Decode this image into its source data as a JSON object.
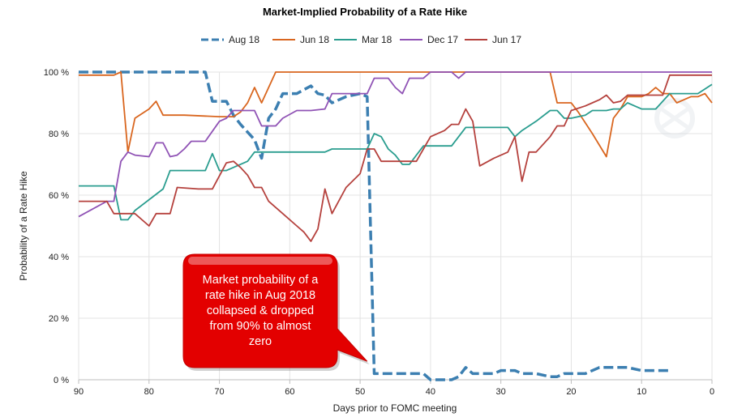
{
  "chart_data": {
    "type": "line",
    "title": "Market-Implied Probability of a Rate Hike",
    "xlabel": "Days prior to FOMC meeting",
    "ylabel": "Probability of a Rate Hike",
    "xlim": [
      90,
      0
    ],
    "ylim": [
      0,
      100
    ],
    "x_ticks": [
      90,
      80,
      70,
      60,
      50,
      40,
      30,
      20,
      10,
      0
    ],
    "y_ticks": [
      0,
      20,
      40,
      60,
      80,
      100
    ],
    "y_tick_suffix": " %",
    "grid": true,
    "legend_position": "top",
    "series": [
      {
        "name": "Aug 18",
        "color": "#3c7fb1",
        "dashed": true,
        "points": [
          [
            90,
            100
          ],
          [
            87,
            100
          ],
          [
            84,
            100
          ],
          [
            80,
            100
          ],
          [
            76,
            100
          ],
          [
            72,
            100
          ],
          [
            71,
            90.5
          ],
          [
            69,
            90.5
          ],
          [
            68,
            86
          ],
          [
            67,
            83
          ],
          [
            65,
            78
          ],
          [
            64,
            72
          ],
          [
            63,
            85
          ],
          [
            62,
            88
          ],
          [
            61,
            93
          ],
          [
            59,
            93
          ],
          [
            57,
            95.5
          ],
          [
            56,
            93
          ],
          [
            55,
            92.5
          ],
          [
            54,
            90
          ],
          [
            52,
            92
          ],
          [
            50,
            93
          ],
          [
            49,
            92
          ],
          [
            48,
            2
          ],
          [
            46,
            2
          ],
          [
            44,
            2
          ],
          [
            42,
            2
          ],
          [
            41,
            2
          ],
          [
            40,
            0
          ],
          [
            37,
            0
          ],
          [
            36,
            1
          ],
          [
            35,
            4
          ],
          [
            34,
            2
          ],
          [
            31,
            2
          ],
          [
            30,
            3
          ],
          [
            28,
            3
          ],
          [
            27,
            2
          ],
          [
            25,
            2
          ],
          [
            23,
            1
          ],
          [
            22,
            1
          ],
          [
            21,
            2
          ],
          [
            19,
            2
          ],
          [
            18,
            2
          ],
          [
            16,
            4
          ],
          [
            14,
            4
          ],
          [
            12,
            4
          ],
          [
            10,
            3
          ],
          [
            8,
            3
          ],
          [
            6,
            3
          ]
        ]
      },
      {
        "name": "Jun 18",
        "color": "#d9661f",
        "dashed": false,
        "points": [
          [
            90,
            99
          ],
          [
            85,
            99
          ],
          [
            84,
            100
          ],
          [
            83,
            74
          ],
          [
            82,
            85
          ],
          [
            80,
            88
          ],
          [
            79,
            90.5
          ],
          [
            78,
            86
          ],
          [
            75,
            86
          ],
          [
            70,
            85.5
          ],
          [
            68,
            85.5
          ],
          [
            67,
            87
          ],
          [
            66,
            90
          ],
          [
            65,
            95
          ],
          [
            64,
            90
          ],
          [
            63,
            95
          ],
          [
            62,
            100
          ],
          [
            60,
            100
          ],
          [
            55,
            100
          ],
          [
            50,
            100
          ],
          [
            45,
            100
          ],
          [
            40,
            100
          ],
          [
            35,
            100
          ],
          [
            30,
            100
          ],
          [
            25,
            100
          ],
          [
            23,
            100
          ],
          [
            22,
            90
          ],
          [
            20,
            90
          ],
          [
            19,
            87
          ],
          [
            17,
            80
          ],
          [
            15,
            72.5
          ],
          [
            14,
            85
          ],
          [
            13,
            88
          ],
          [
            12,
            92
          ],
          [
            11,
            92
          ],
          [
            10,
            92
          ],
          [
            9,
            93
          ],
          [
            8,
            95
          ],
          [
            7,
            93
          ],
          [
            6,
            93
          ],
          [
            5,
            90
          ],
          [
            4,
            91
          ],
          [
            3,
            92
          ],
          [
            2,
            92
          ],
          [
            1,
            93
          ],
          [
            0,
            90
          ]
        ]
      },
      {
        "name": "Mar 18",
        "color": "#2a9d8f",
        "dashed": false,
        "points": [
          [
            90,
            63
          ],
          [
            85,
            63
          ],
          [
            84,
            52
          ],
          [
            83,
            52
          ],
          [
            82,
            55
          ],
          [
            78,
            62
          ],
          [
            77,
            68
          ],
          [
            76,
            68
          ],
          [
            72,
            68
          ],
          [
            71,
            73.5
          ],
          [
            70,
            68
          ],
          [
            69,
            68
          ],
          [
            66,
            71
          ],
          [
            65,
            74
          ],
          [
            60,
            74
          ],
          [
            55,
            74
          ],
          [
            54,
            75
          ],
          [
            49,
            75
          ],
          [
            48,
            80
          ],
          [
            47,
            79
          ],
          [
            46,
            75
          ],
          [
            45,
            73
          ],
          [
            44,
            70
          ],
          [
            43,
            70
          ],
          [
            42,
            73
          ],
          [
            41,
            76
          ],
          [
            37,
            76
          ],
          [
            35,
            82
          ],
          [
            30,
            82
          ],
          [
            29,
            82
          ],
          [
            28,
            79
          ],
          [
            27,
            81
          ],
          [
            25,
            84
          ],
          [
            23,
            87.5
          ],
          [
            22,
            87.5
          ],
          [
            21,
            85
          ],
          [
            20,
            85
          ],
          [
            18,
            86
          ],
          [
            17,
            87.5
          ],
          [
            15,
            87.5
          ],
          [
            14,
            88
          ],
          [
            13,
            88
          ],
          [
            12,
            90
          ],
          [
            10,
            88
          ],
          [
            8,
            88
          ],
          [
            6,
            93
          ],
          [
            4,
            93
          ],
          [
            2,
            93
          ],
          [
            0,
            96
          ]
        ]
      },
      {
        "name": "Dec 17",
        "color": "#9053b5",
        "dashed": false,
        "points": [
          [
            90,
            53
          ],
          [
            86,
            58
          ],
          [
            85,
            58
          ],
          [
            84,
            71
          ],
          [
            83,
            74
          ],
          [
            82,
            73
          ],
          [
            80,
            72.5
          ],
          [
            79,
            77
          ],
          [
            78,
            77
          ],
          [
            77,
            72.5
          ],
          [
            76,
            73
          ],
          [
            75,
            75
          ],
          [
            74,
            77.5
          ],
          [
            72,
            77.5
          ],
          [
            70,
            84
          ],
          [
            69,
            85
          ],
          [
            68,
            87.5
          ],
          [
            65,
            87.5
          ],
          [
            64,
            82.5
          ],
          [
            62,
            82.5
          ],
          [
            61,
            85
          ],
          [
            59,
            87.5
          ],
          [
            57,
            87.5
          ],
          [
            55,
            88
          ],
          [
            54,
            93
          ],
          [
            50,
            93
          ],
          [
            49,
            93
          ],
          [
            48,
            98
          ],
          [
            46,
            98
          ],
          [
            45,
            95
          ],
          [
            44,
            93
          ],
          [
            43,
            98
          ],
          [
            41,
            98
          ],
          [
            40,
            100
          ],
          [
            37,
            100
          ],
          [
            36,
            98
          ],
          [
            35,
            100
          ],
          [
            34,
            100
          ],
          [
            30,
            100
          ],
          [
            25,
            100
          ],
          [
            20,
            100
          ],
          [
            15,
            100
          ],
          [
            10,
            100
          ],
          [
            5,
            100
          ],
          [
            0,
            100
          ]
        ]
      },
      {
        "name": "Jun 17",
        "color": "#b5413d",
        "dashed": false,
        "points": [
          [
            90,
            58
          ],
          [
            88,
            58
          ],
          [
            86,
            58
          ],
          [
            85,
            54
          ],
          [
            84,
            54
          ],
          [
            82,
            54
          ],
          [
            80,
            50
          ],
          [
            79,
            54
          ],
          [
            77,
            54
          ],
          [
            76,
            62.5
          ],
          [
            73,
            62
          ],
          [
            71,
            62
          ],
          [
            69,
            70.5
          ],
          [
            68,
            71
          ],
          [
            67,
            69
          ],
          [
            66,
            66.5
          ],
          [
            65,
            62.5
          ],
          [
            64,
            62.5
          ],
          [
            63,
            58
          ],
          [
            61,
            54
          ],
          [
            59,
            50
          ],
          [
            58,
            48
          ],
          [
            57,
            45
          ],
          [
            56,
            49
          ],
          [
            55,
            62
          ],
          [
            54,
            54
          ],
          [
            52,
            62.5
          ],
          [
            50,
            67
          ],
          [
            49,
            75
          ],
          [
            48,
            75
          ],
          [
            47,
            71
          ],
          [
            45,
            71
          ],
          [
            43,
            71
          ],
          [
            42,
            71
          ],
          [
            41,
            75
          ],
          [
            40,
            79
          ],
          [
            38,
            81
          ],
          [
            37,
            83
          ],
          [
            36,
            83
          ],
          [
            35,
            88
          ],
          [
            34,
            84
          ],
          [
            33,
            69.5
          ],
          [
            31,
            72
          ],
          [
            29,
            74
          ],
          [
            28,
            79
          ],
          [
            27,
            64.5
          ],
          [
            26,
            74
          ],
          [
            25,
            74
          ],
          [
            23,
            79
          ],
          [
            22,
            82.5
          ],
          [
            21,
            82.5
          ],
          [
            20,
            87.5
          ],
          [
            18,
            89
          ],
          [
            17,
            90
          ],
          [
            16,
            91
          ],
          [
            15,
            92.5
          ],
          [
            14,
            90
          ],
          [
            13,
            90.5
          ],
          [
            12,
            92.5
          ],
          [
            10,
            92.5
          ],
          [
            8,
            92.5
          ],
          [
            7,
            92.5
          ],
          [
            6,
            99
          ],
          [
            4,
            99
          ],
          [
            2,
            99
          ],
          [
            0,
            99
          ]
        ]
      }
    ],
    "annotation": {
      "lines": [
        "Market probability of a",
        "rate hike in Aug 2018",
        "collapsed & dropped",
        "from 90% to almost",
        "zero"
      ],
      "target_x": 49,
      "target_y": 6,
      "box_color": "#e30000",
      "text_color": "#ffffff"
    }
  }
}
